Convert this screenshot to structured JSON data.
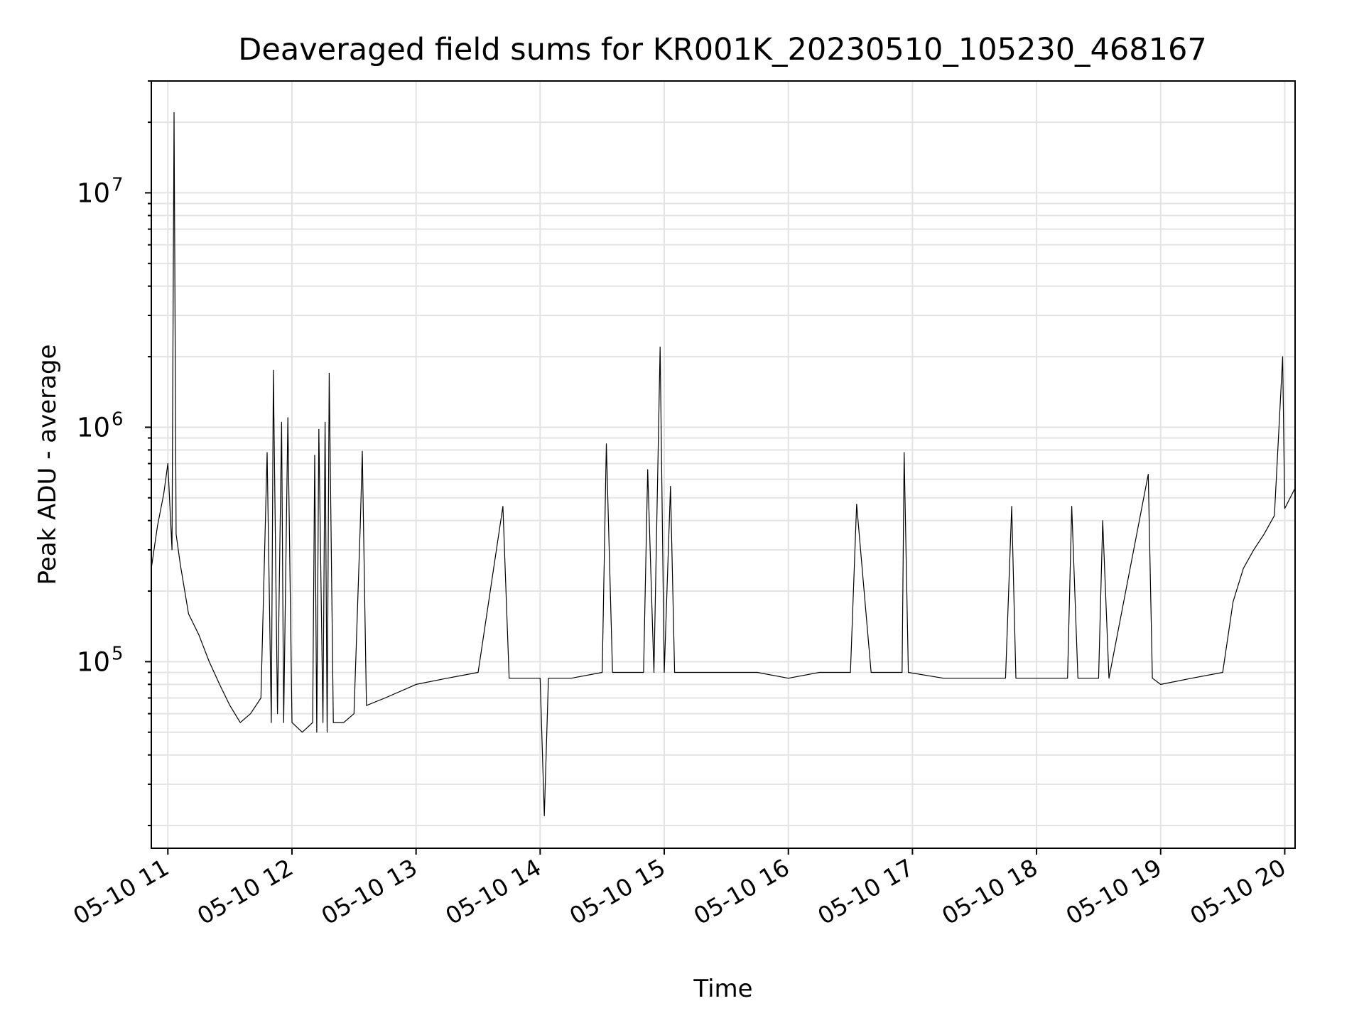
{
  "chart_data": {
    "type": "line",
    "title": "Deaveraged field sums for KR001K_20230510_105230_468167",
    "xlabel": "Time",
    "ylabel": "Peak ADU - average",
    "x_range": [
      "2023-05-10 10:52",
      "2023-05-10 20:05"
    ],
    "ylim": [
      16000,
      30000000
    ],
    "yscale": "log",
    "grid": true,
    "x_ticks": [
      {
        "time": "2023-05-10 11:00",
        "label": "05-10 11"
      },
      {
        "time": "2023-05-10 12:00",
        "label": "05-10 12"
      },
      {
        "time": "2023-05-10 13:00",
        "label": "05-10 13"
      },
      {
        "time": "2023-05-10 14:00",
        "label": "05-10 14"
      },
      {
        "time": "2023-05-10 15:00",
        "label": "05-10 15"
      },
      {
        "time": "2023-05-10 16:00",
        "label": "05-10 16"
      },
      {
        "time": "2023-05-10 17:00",
        "label": "05-10 17"
      },
      {
        "time": "2023-05-10 18:00",
        "label": "05-10 18"
      },
      {
        "time": "2023-05-10 19:00",
        "label": "05-10 19"
      },
      {
        "time": "2023-05-10 20:00",
        "label": "05-10 20"
      }
    ],
    "y_ticks": [
      {
        "value": 100000,
        "base": "10",
        "exp": "5"
      },
      {
        "value": 1000000,
        "base": "10",
        "exp": "6"
      },
      {
        "value": 10000000,
        "base": "10",
        "exp": "7"
      }
    ],
    "series": [
      {
        "color": "#000000",
        "points": [
          [
            "2023-05-10 10:52",
            250000
          ],
          [
            "2023-05-10 10:55",
            380000
          ],
          [
            "2023-05-10 10:58",
            520000
          ],
          [
            "2023-05-10 11:00",
            700000
          ],
          [
            "2023-05-10 11:02",
            300000
          ],
          [
            "2023-05-10 11:03",
            22000000
          ],
          [
            "2023-05-10 11:04",
            350000
          ],
          [
            "2023-05-10 11:06",
            260000
          ],
          [
            "2023-05-10 11:10",
            160000
          ],
          [
            "2023-05-10 11:15",
            130000
          ],
          [
            "2023-05-10 11:20",
            100000
          ],
          [
            "2023-05-10 11:25",
            80000
          ],
          [
            "2023-05-10 11:30",
            65000
          ],
          [
            "2023-05-10 11:35",
            55000
          ],
          [
            "2023-05-10 11:40",
            60000
          ],
          [
            "2023-05-10 11:45",
            70000
          ],
          [
            "2023-05-10 11:48",
            780000
          ],
          [
            "2023-05-10 11:50",
            55000
          ],
          [
            "2023-05-10 11:51",
            1750000
          ],
          [
            "2023-05-10 11:53",
            60000
          ],
          [
            "2023-05-10 11:55",
            1050000
          ],
          [
            "2023-05-10 11:56",
            55000
          ],
          [
            "2023-05-10 11:58",
            1100000
          ],
          [
            "2023-05-10 12:00",
            55000
          ],
          [
            "2023-05-10 12:05",
            50000
          ],
          [
            "2023-05-10 12:10",
            55000
          ],
          [
            "2023-05-10 12:11",
            760000
          ],
          [
            "2023-05-10 12:12",
            50000
          ],
          [
            "2023-05-10 12:13",
            980000
          ],
          [
            "2023-05-10 12:15",
            55000
          ],
          [
            "2023-05-10 12:16",
            1050000
          ],
          [
            "2023-05-10 12:17",
            50000
          ],
          [
            "2023-05-10 12:18",
            1700000
          ],
          [
            "2023-05-10 12:20",
            55000
          ],
          [
            "2023-05-10 12:25",
            55000
          ],
          [
            "2023-05-10 12:30",
            60000
          ],
          [
            "2023-05-10 12:33",
            380000
          ],
          [
            "2023-05-10 12:34",
            790000
          ],
          [
            "2023-05-10 12:36",
            65000
          ],
          [
            "2023-05-10 12:45",
            70000
          ],
          [
            "2023-05-10 13:00",
            80000
          ],
          [
            "2023-05-10 13:15",
            85000
          ],
          [
            "2023-05-10 13:30",
            90000
          ],
          [
            "2023-05-10 13:42",
            460000
          ],
          [
            "2023-05-10 13:45",
            85000
          ],
          [
            "2023-05-10 14:00",
            85000
          ],
          [
            "2023-05-10 14:02",
            22000
          ],
          [
            "2023-05-10 14:04",
            85000
          ],
          [
            "2023-05-10 14:15",
            85000
          ],
          [
            "2023-05-10 14:30",
            90000
          ],
          [
            "2023-05-10 14:32",
            850000
          ],
          [
            "2023-05-10 14:35",
            90000
          ],
          [
            "2023-05-10 14:50",
            90000
          ],
          [
            "2023-05-10 14:52",
            660000
          ],
          [
            "2023-05-10 14:55",
            90000
          ],
          [
            "2023-05-10 14:58",
            2200000
          ],
          [
            "2023-05-10 15:00",
            90000
          ],
          [
            "2023-05-10 15:03",
            560000
          ],
          [
            "2023-05-10 15:05",
            90000
          ],
          [
            "2023-05-10 15:30",
            90000
          ],
          [
            "2023-05-10 15:45",
            90000
          ],
          [
            "2023-05-10 16:00",
            85000
          ],
          [
            "2023-05-10 16:15",
            90000
          ],
          [
            "2023-05-10 16:30",
            90000
          ],
          [
            "2023-05-10 16:33",
            470000
          ],
          [
            "2023-05-10 16:40",
            90000
          ],
          [
            "2023-05-10 16:55",
            90000
          ],
          [
            "2023-05-10 16:56",
            780000
          ],
          [
            "2023-05-10 16:58",
            90000
          ],
          [
            "2023-05-10 17:15",
            85000
          ],
          [
            "2023-05-10 17:30",
            85000
          ],
          [
            "2023-05-10 17:45",
            85000
          ],
          [
            "2023-05-10 17:48",
            460000
          ],
          [
            "2023-05-10 17:50",
            85000
          ],
          [
            "2023-05-10 18:00",
            85000
          ],
          [
            "2023-05-10 18:15",
            85000
          ],
          [
            "2023-05-10 18:17",
            460000
          ],
          [
            "2023-05-10 18:20",
            85000
          ],
          [
            "2023-05-10 18:30",
            85000
          ],
          [
            "2023-05-10 18:32",
            400000
          ],
          [
            "2023-05-10 18:35",
            85000
          ],
          [
            "2023-05-10 18:54",
            630000
          ],
          [
            "2023-05-10 18:56",
            85000
          ],
          [
            "2023-05-10 19:00",
            80000
          ],
          [
            "2023-05-10 19:15",
            85000
          ],
          [
            "2023-05-10 19:30",
            90000
          ],
          [
            "2023-05-10 19:35",
            180000
          ],
          [
            "2023-05-10 19:40",
            250000
          ],
          [
            "2023-05-10 19:45",
            300000
          ],
          [
            "2023-05-10 19:50",
            350000
          ],
          [
            "2023-05-10 19:55",
            420000
          ],
          [
            "2023-05-10 19:59",
            2000000
          ],
          [
            "2023-05-10 20:00",
            450000
          ],
          [
            "2023-05-10 20:05",
            550000
          ]
        ]
      }
    ]
  }
}
